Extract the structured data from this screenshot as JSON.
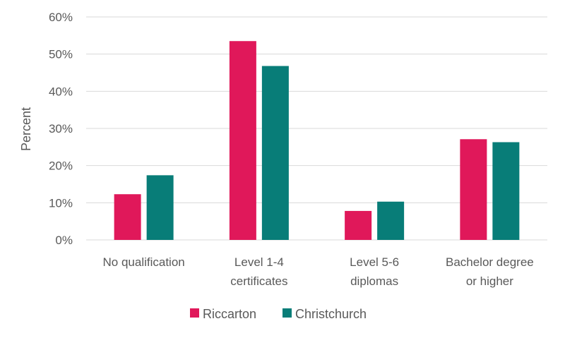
{
  "chart_data": {
    "type": "bar",
    "title": "",
    "xlabel": "",
    "ylabel": "Percent",
    "ylim": [
      0,
      60
    ],
    "y_ticks": [
      "0%",
      "10%",
      "20%",
      "30%",
      "40%",
      "50%",
      "60%"
    ],
    "categories": [
      [
        "No qualification"
      ],
      [
        "Level 1-4",
        "certificates"
      ],
      [
        "Level 5-6",
        "diplomas"
      ],
      [
        "Bachelor degree",
        "or higher"
      ]
    ],
    "series": [
      {
        "name": "Riccarton",
        "color": "#e0185a",
        "values": [
          12.3,
          53.5,
          7.8,
          27.1
        ]
      },
      {
        "name": "Christchurch",
        "color": "#087d78",
        "values": [
          17.4,
          46.8,
          10.3,
          26.3
        ]
      }
    ],
    "grid": true,
    "legend_position": "bottom"
  }
}
